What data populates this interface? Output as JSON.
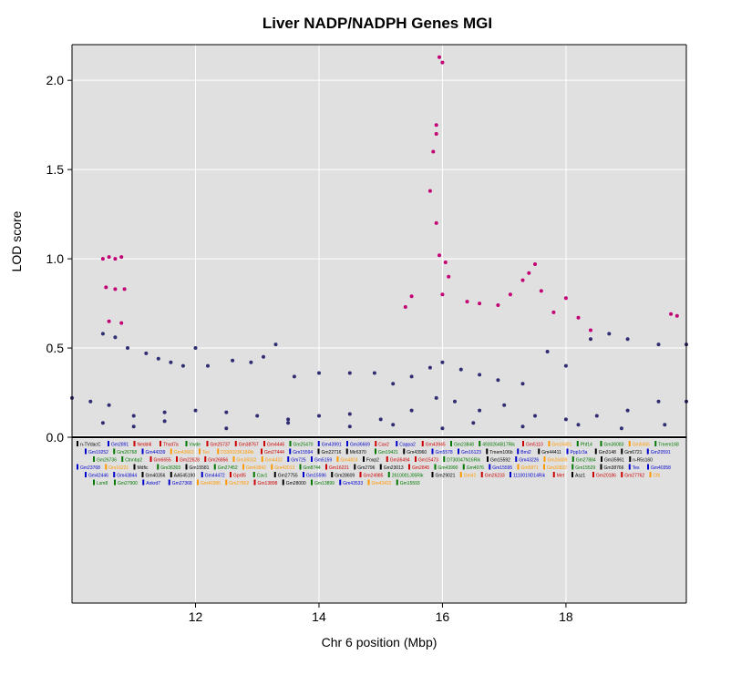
{
  "chart_data": {
    "type": "scatter",
    "title": "Liver NADP/NADPH Genes MGI",
    "xlabel": "Chr 6 position (Mbp)",
    "ylabel": "LOD score",
    "xlim": [
      10.0,
      19.95
    ],
    "ylim": [
      0.0,
      2.2
    ],
    "xticks": [
      12,
      14,
      16,
      18
    ],
    "yticks": [
      0.0,
      0.5,
      1.0,
      1.5,
      2.0
    ],
    "xtick_labels": [
      "12",
      "14",
      "16",
      "18"
    ],
    "ytick_labels": [
      "0.0",
      "0.5",
      "1.0",
      "1.5",
      "2.0"
    ],
    "grid": true,
    "background": "#e0e0e0",
    "colors": {
      "base": "#312d73",
      "highlight": "#c20074",
      "gene_red": "#cc0000",
      "gene_green": "#007700",
      "gene_blue": "#0000cc",
      "gene_orange": "#ff9900",
      "gene_black": "#000000"
    },
    "series": [
      {
        "values": [
          [
            10.0,
            0.22
          ],
          [
            10.3,
            0.2
          ],
          [
            10.6,
            0.18
          ],
          [
            11.0,
            0.12
          ],
          [
            11.5,
            0.14
          ],
          [
            12.0,
            0.15
          ],
          [
            12.5,
            0.14
          ],
          [
            13.0,
            0.12
          ],
          [
            13.5,
            0.1
          ],
          [
            14.0,
            0.12
          ],
          [
            14.5,
            0.13
          ],
          [
            15.0,
            0.1
          ],
          [
            15.5,
            0.15
          ],
          [
            15.9,
            0.22
          ],
          [
            16.2,
            0.2
          ],
          [
            16.6,
            0.15
          ],
          [
            17.0,
            0.18
          ],
          [
            17.5,
            0.12
          ],
          [
            18.0,
            0.1
          ],
          [
            18.5,
            0.12
          ],
          [
            19.0,
            0.15
          ],
          [
            19.5,
            0.2
          ],
          [
            19.95,
            0.2
          ],
          [
            10.5,
            0.58
          ],
          [
            10.7,
            0.56
          ],
          [
            10.9,
            0.5
          ],
          [
            11.2,
            0.47
          ],
          [
            11.4,
            0.44
          ],
          [
            11.6,
            0.42
          ],
          [
            11.8,
            0.4
          ],
          [
            12.0,
            0.5
          ],
          [
            12.2,
            0.4
          ],
          [
            12.6,
            0.43
          ],
          [
            12.9,
            0.42
          ],
          [
            13.1,
            0.45
          ],
          [
            13.3,
            0.52
          ],
          [
            13.6,
            0.34
          ],
          [
            14.0,
            0.36
          ],
          [
            14.5,
            0.36
          ],
          [
            14.9,
            0.36
          ],
          [
            15.2,
            0.3
          ],
          [
            15.5,
            0.34
          ],
          [
            15.8,
            0.39
          ],
          [
            16.0,
            0.42
          ],
          [
            16.3,
            0.38
          ],
          [
            16.6,
            0.35
          ],
          [
            16.9,
            0.32
          ],
          [
            17.3,
            0.3
          ],
          [
            17.7,
            0.48
          ],
          [
            18.0,
            0.4
          ],
          [
            18.4,
            0.55
          ],
          [
            18.7,
            0.58
          ],
          [
            19.0,
            0.55
          ],
          [
            19.5,
            0.52
          ],
          [
            19.95,
            0.52
          ],
          [
            10.5,
            0.08
          ],
          [
            11.0,
            0.06
          ],
          [
            11.5,
            0.09
          ],
          [
            12.5,
            0.05
          ],
          [
            13.5,
            0.08
          ],
          [
            14.5,
            0.06
          ],
          [
            15.2,
            0.07
          ],
          [
            16.0,
            0.05
          ],
          [
            16.5,
            0.08
          ],
          [
            17.3,
            0.06
          ],
          [
            18.2,
            0.07
          ],
          [
            18.9,
            0.05
          ],
          [
            19.6,
            0.07
          ]
        ]
      },
      {
        "values": [
          [
            10.5,
            1.0
          ],
          [
            10.6,
            1.01
          ],
          [
            10.7,
            1.0
          ],
          [
            10.8,
            1.01
          ],
          [
            10.55,
            0.84
          ],
          [
            10.7,
            0.83
          ],
          [
            10.85,
            0.83
          ],
          [
            10.6,
            0.65
          ],
          [
            10.8,
            0.64
          ],
          [
            15.4,
            0.73
          ],
          [
            15.5,
            0.79
          ],
          [
            15.9,
            1.75
          ],
          [
            15.85,
            1.6
          ],
          [
            15.9,
            1.7
          ],
          [
            15.95,
            2.13
          ],
          [
            16.0,
            2.1
          ],
          [
            15.8,
            1.38
          ],
          [
            15.9,
            1.2
          ],
          [
            15.95,
            1.02
          ],
          [
            16.05,
            0.98
          ],
          [
            16.1,
            0.9
          ],
          [
            16.0,
            0.8
          ],
          [
            16.4,
            0.76
          ],
          [
            16.6,
            0.75
          ],
          [
            16.9,
            0.74
          ],
          [
            17.1,
            0.8
          ],
          [
            17.3,
            0.88
          ],
          [
            17.4,
            0.92
          ],
          [
            17.5,
            0.97
          ],
          [
            17.6,
            0.82
          ],
          [
            17.8,
            0.7
          ],
          [
            18.0,
            0.78
          ],
          [
            18.2,
            0.67
          ],
          [
            18.4,
            0.6
          ],
          [
            19.7,
            0.69
          ],
          [
            19.8,
            0.68
          ]
        ]
      }
    ],
    "genes": [
      [
        "n-TVdacC",
        "black"
      ],
      [
        "Gm2891",
        "blue"
      ],
      [
        "Nedd4l",
        "red"
      ],
      [
        "Thsd7a",
        "red"
      ],
      [
        "Vwde",
        "green"
      ],
      [
        "Gm25737",
        "red"
      ],
      [
        "Gm38767",
        "red"
      ],
      [
        "Gm4446",
        "red"
      ],
      [
        "Gm25470",
        "green"
      ],
      [
        "Gm43991",
        "blue"
      ],
      [
        "Gm36669",
        "blue"
      ],
      [
        "Cav2",
        "red"
      ],
      [
        "Cappa2",
        "blue"
      ],
      [
        "Gm43945",
        "red"
      ],
      [
        "Gm23848",
        "green"
      ],
      [
        "4930264B17Rik",
        "green"
      ],
      [
        "Gm5110",
        "red"
      ],
      [
        "Gm16491",
        "orange"
      ],
      [
        "Phf14",
        "green"
      ],
      [
        "Gm36083",
        "green"
      ],
      [
        "Gm5665",
        "orange"
      ],
      [
        "Tmem168",
        "green"
      ],
      [
        "Gm19252",
        "blue"
      ],
      [
        "Gm26768",
        "green"
      ],
      [
        "Gm44339",
        "blue"
      ],
      [
        "Gm43663",
        "orange"
      ],
      [
        "Tes",
        "orange"
      ],
      [
        "D330023K18Rik",
        "orange"
      ],
      [
        "Gm27444",
        "red"
      ],
      [
        "Gm15594",
        "blue"
      ],
      [
        "Gm22716",
        "black"
      ],
      [
        "Mir6370",
        "black"
      ],
      [
        "Gm19421",
        "green"
      ],
      [
        "Gm43960",
        "black"
      ],
      [
        "Gm5578",
        "blue"
      ],
      [
        "Gm16123",
        "blue"
      ],
      [
        "Tmem106b",
        "black"
      ],
      [
        "Bmi2",
        "blue"
      ],
      [
        "Gm44411",
        "black"
      ],
      [
        "Ppp1r3a",
        "blue"
      ],
      [
        "Gm3148",
        "black"
      ],
      [
        "Gm6721",
        "black"
      ],
      [
        "Gm20591",
        "blue"
      ],
      [
        "Gm26736",
        "green"
      ],
      [
        "Ctnnbp2",
        "green"
      ],
      [
        "Gm6655",
        "red"
      ],
      [
        "Gm22628",
        "red"
      ],
      [
        "Gm26856",
        "red"
      ],
      [
        "Gm38332",
        "orange"
      ],
      [
        "Gm4432",
        "orange"
      ],
      [
        "Gm725",
        "blue"
      ],
      [
        "Gm5159",
        "blue"
      ],
      [
        "Gm4824",
        "orange"
      ],
      [
        "Foxp2",
        "black"
      ],
      [
        "Gm36494",
        "red"
      ],
      [
        "Gm15473",
        "red"
      ],
      [
        "D730047N16Rik",
        "green"
      ],
      [
        "Gm15592",
        "black"
      ],
      [
        "Gm43226",
        "blue"
      ],
      [
        "Gm26409",
        "orange"
      ],
      [
        "Gm27884",
        "green"
      ],
      [
        "Gm35961",
        "black"
      ],
      [
        "n-R5s160",
        "black"
      ],
      [
        "Gm23768",
        "blue"
      ],
      [
        "Gm16221",
        "orange"
      ],
      [
        "Mdfic",
        "black"
      ],
      [
        "Gm36303",
        "green"
      ],
      [
        "Gm15581",
        "black"
      ],
      [
        "Gm27452",
        "green"
      ],
      [
        "Gm43842",
        "orange"
      ],
      [
        "Gm42013",
        "orange"
      ],
      [
        "Gm8744",
        "green"
      ],
      [
        "Gm16221",
        "red"
      ],
      [
        "Gm2796",
        "black"
      ],
      [
        "Gm23013",
        "black"
      ],
      [
        "Gm2845",
        "red"
      ],
      [
        "Gm43990",
        "green"
      ],
      [
        "Gm4076",
        "green"
      ],
      [
        "Gm15595",
        "blue"
      ],
      [
        "Gm5871",
        "orange"
      ],
      [
        "Gm32822",
        "orange"
      ],
      [
        "Gm15529",
        "green"
      ],
      [
        "Gm38766",
        "black"
      ],
      [
        "Tes",
        "blue"
      ],
      [
        "Gm40358",
        "blue"
      ],
      [
        "Gm42446",
        "blue"
      ],
      [
        "Gm43844",
        "blue"
      ],
      [
        "Gm40356",
        "black"
      ],
      [
        "AA545190",
        "black"
      ],
      [
        "Gm44472",
        "blue"
      ],
      [
        "Gpr85",
        "red"
      ],
      [
        "Cav1",
        "green"
      ],
      [
        "Gm27755",
        "black"
      ],
      [
        "Gm15596",
        "blue"
      ],
      [
        "Gm28609",
        "black"
      ],
      [
        "Gm24985",
        "red"
      ],
      [
        "2610001J05Rik",
        "green"
      ],
      [
        "Gm29021",
        "black"
      ],
      [
        "Gm42",
        "orange"
      ],
      [
        "Gm26233",
        "red"
      ],
      [
        "1110019D14Rik",
        "blue"
      ],
      [
        "Met",
        "red"
      ],
      [
        "Asz1",
        "black"
      ],
      [
        "Gm20186",
        "red"
      ],
      [
        "Gm27762",
        "red"
      ],
      [
        "Cfb",
        "orange"
      ],
      [
        "Lsm8",
        "green"
      ],
      [
        "Gm27900",
        "green"
      ],
      [
        "Ankrd7",
        "blue"
      ],
      [
        "Gm27368",
        "blue"
      ],
      [
        "Gm40386",
        "orange"
      ],
      [
        "Gm27802",
        "orange"
      ],
      [
        "Gm13898",
        "red"
      ],
      [
        "Gm28000",
        "black"
      ],
      [
        "Gm13899",
        "green"
      ],
      [
        "Gm43533",
        "blue"
      ],
      [
        "Gm43432",
        "orange"
      ],
      [
        "Gm15593",
        "green"
      ]
    ]
  }
}
